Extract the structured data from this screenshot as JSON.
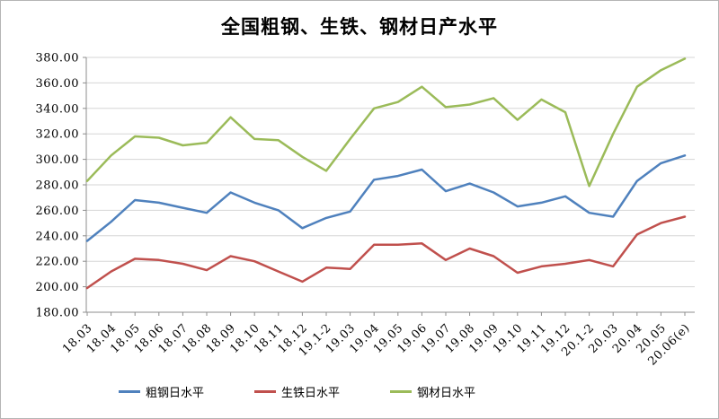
{
  "chart_data": {
    "type": "line",
    "title": "全国粗钢、生铁、钢材日产水平",
    "categories": [
      "18.03",
      "18.04",
      "18.05",
      "18.06",
      "18.07",
      "18.08",
      "18.09",
      "18.10",
      "18.11",
      "18.12",
      "19.1-2",
      "19.03",
      "19.04",
      "19.05",
      "19.06",
      "19.07",
      "19.08",
      "19.09",
      "19.10",
      "19.11",
      "19.12",
      "20.1-2",
      "20.03",
      "20.04",
      "20.05",
      "20.06(e)"
    ],
    "series": [
      {
        "id": "crude-steel",
        "name": "粗钢日水平",
        "color": "#4F81BD",
        "values": [
          236,
          251,
          268,
          266,
          262,
          258,
          274,
          266,
          260,
          246,
          254,
          259,
          284,
          287,
          292,
          275,
          281,
          274,
          263,
          266,
          271,
          258,
          255,
          283,
          297,
          303
        ]
      },
      {
        "id": "pig-iron",
        "name": "生铁日水平",
        "color": "#C0504D",
        "values": [
          199,
          212,
          222,
          221,
          218,
          213,
          224,
          220,
          212,
          204,
          215,
          214,
          233,
          233,
          234,
          221,
          230,
          224,
          211,
          216,
          218,
          221,
          216,
          241,
          250,
          255
        ]
      },
      {
        "id": "steel-products",
        "name": "钢材日水平",
        "color": "#9BBB59",
        "values": [
          283,
          303,
          318,
          317,
          311,
          313,
          333,
          316,
          315,
          302,
          291,
          316,
          340,
          345,
          357,
          341,
          343,
          348,
          331,
          347,
          337,
          279,
          320,
          357,
          370,
          379
        ]
      }
    ],
    "ylim": [
      180,
      380
    ],
    "y_tick_step": 20,
    "y_tick_labels": [
      "380.00",
      "360.00",
      "340.00",
      "320.00",
      "300.00",
      "280.00",
      "260.00",
      "240.00",
      "220.00",
      "200.00",
      "180.00"
    ],
    "grid": "horizontal",
    "legend_position": "bottom",
    "colors": {
      "grid": "#D6D6D6",
      "axis": "#8C8C8C",
      "text": "#000000",
      "background": "#FFFFFF"
    }
  }
}
